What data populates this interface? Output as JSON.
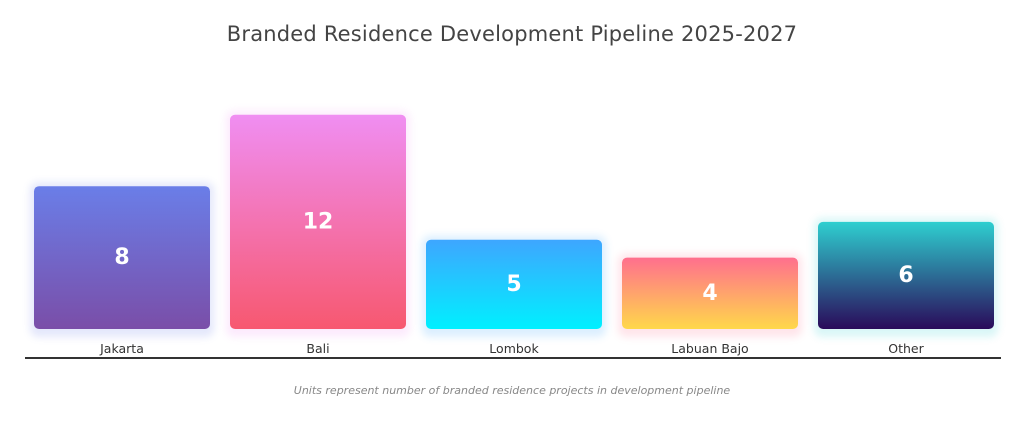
{
  "chart_data": {
    "type": "bar",
    "title": "Branded Residence Development Pipeline 2025-2027",
    "xlabel": "",
    "ylabel": "",
    "categories": [
      "Jakarta",
      "Bali",
      "Lombok",
      "Labuan Bajo",
      "Other"
    ],
    "values": [
      8,
      12,
      5,
      4,
      6
    ],
    "ylim": [
      0,
      12
    ],
    "grid": false,
    "legend": "none",
    "annotation": "Units represent number of branded residence projects in development pipeline",
    "bar_gradients": [
      [
        "#6a7ee8",
        "#7a4ea8"
      ],
      [
        "#f08ef2",
        "#f75870"
      ],
      [
        "#3ea6ff",
        "#00f0ff"
      ],
      [
        "#ff6f8e",
        "#ffd84a"
      ],
      [
        "#2ecfd0",
        "#2a0a5a"
      ]
    ]
  }
}
